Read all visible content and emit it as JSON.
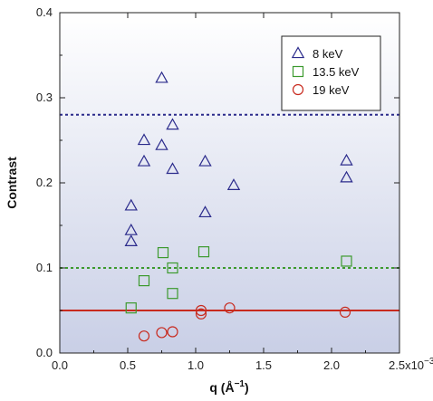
{
  "chart_data": {
    "type": "scatter",
    "title": "",
    "xlabel": "q (Å",
    "xlabel_sup": "−1",
    "xlabel_close": ")",
    "ylabel": "Contrast",
    "xlim": [
      0,
      0.0025
    ],
    "ylim": [
      0,
      0.4
    ],
    "x_ticks": [
      0,
      0.0005,
      0.001,
      0.0015,
      0.002,
      0.0025
    ],
    "x_tick_labels": [
      "0.0",
      "0.5",
      "1.0",
      "1.5",
      "2.0",
      "2.5x10"
    ],
    "x_tick_exponent": "−3",
    "y_ticks": [
      0,
      0.1,
      0.2,
      0.3,
      0.4
    ],
    "y_tick_labels": [
      "0.0",
      "0.1",
      "0.2",
      "0.3",
      "0.4"
    ],
    "legend_position": "top-right",
    "background_gradient": [
      "#ffffff",
      "#c9cfe6"
    ],
    "series": [
      {
        "name": "8 keV",
        "marker": "triangle",
        "color": "#2b2b8c",
        "points": [
          {
            "x": 0.000525,
            "y": 0.173
          },
          {
            "x": 0.000525,
            "y": 0.144
          },
          {
            "x": 0.000525,
            "y": 0.131
          },
          {
            "x": 0.00062,
            "y": 0.25
          },
          {
            "x": 0.00062,
            "y": 0.225
          },
          {
            "x": 0.00075,
            "y": 0.323
          },
          {
            "x": 0.00075,
            "y": 0.244
          },
          {
            "x": 0.00083,
            "y": 0.268
          },
          {
            "x": 0.00083,
            "y": 0.216
          },
          {
            "x": 0.00107,
            "y": 0.225
          },
          {
            "x": 0.00107,
            "y": 0.165
          },
          {
            "x": 0.00128,
            "y": 0.197
          },
          {
            "x": 0.00211,
            "y": 0.226
          },
          {
            "x": 0.00211,
            "y": 0.206
          }
        ],
        "reference_line": 0.28,
        "reference_style": "dotted"
      },
      {
        "name": "13.5 keV",
        "marker": "square",
        "color": "#3c9a2e",
        "points": [
          {
            "x": 0.000525,
            "y": 0.053
          },
          {
            "x": 0.00062,
            "y": 0.085
          },
          {
            "x": 0.00076,
            "y": 0.118
          },
          {
            "x": 0.00083,
            "y": 0.1
          },
          {
            "x": 0.00083,
            "y": 0.07
          },
          {
            "x": 0.00106,
            "y": 0.119
          },
          {
            "x": 0.00211,
            "y": 0.108
          }
        ],
        "reference_line": 0.1,
        "reference_style": "dotted"
      },
      {
        "name": "19 keV",
        "marker": "circle",
        "color": "#c82a1e",
        "points": [
          {
            "x": 0.00062,
            "y": 0.02
          },
          {
            "x": 0.00075,
            "y": 0.024
          },
          {
            "x": 0.00083,
            "y": 0.025
          },
          {
            "x": 0.00104,
            "y": 0.05
          },
          {
            "x": 0.00104,
            "y": 0.046
          },
          {
            "x": 0.00125,
            "y": 0.053
          },
          {
            "x": 0.0021,
            "y": 0.048
          }
        ],
        "reference_line": 0.05,
        "reference_style": "solid"
      }
    ]
  }
}
